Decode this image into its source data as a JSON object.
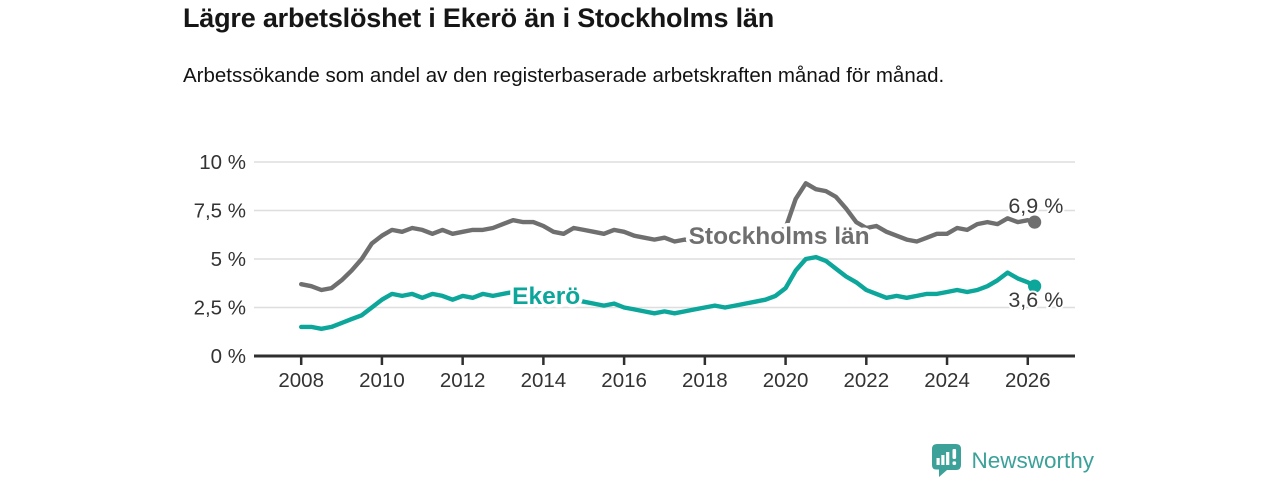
{
  "header": {
    "title": "Lägre arbetslöshet i Ekerö än i Stockholms län",
    "subtitle": "Arbetssökande som andel av den registerbaserade arbetskraften månad för månad."
  },
  "logo": {
    "text": "Newsworthy",
    "icon": "newsworthy-bar-chart-bubble-icon",
    "color": "#3ba199"
  },
  "colors": {
    "ekero": "#0ca69a",
    "stockholm": "#6f6f6f",
    "grid": "#dedede",
    "axis": "#2f2f2f",
    "tick_text": "#333333",
    "end_label_text": "#3a3a3a",
    "background": "#ffffff"
  },
  "chart_data": {
    "type": "line",
    "title": "Lägre arbetslöshet i Ekerö än i Stockholms län",
    "xlabel": "",
    "ylabel": "",
    "unit": "%",
    "grid": true,
    "legend": "inline-labels",
    "x_axis": {
      "range": [
        2006.93,
        2027.17
      ],
      "ticks": [
        2008,
        2010,
        2012,
        2014,
        2016,
        2018,
        2020,
        2022,
        2024,
        2026
      ]
    },
    "y_axis": {
      "range": [
        0,
        10
      ],
      "ticks": [
        {
          "v": 0,
          "label": "0 %"
        },
        {
          "v": 2.5,
          "label": "2,5 %"
        },
        {
          "v": 5,
          "label": "5 %"
        },
        {
          "v": 7.5,
          "label": "7,5 %"
        },
        {
          "v": 10,
          "label": "10 %"
        }
      ]
    },
    "series": [
      {
        "name": "Stockholms län",
        "color": "#6f6f6f",
        "end_value": 6.9,
        "end_label": "6,9 %",
        "points": [
          [
            2008,
            3.7
          ],
          [
            2008.25,
            3.6
          ],
          [
            2008.5,
            3.4
          ],
          [
            2008.75,
            3.5
          ],
          [
            2009,
            3.9
          ],
          [
            2009.25,
            4.4
          ],
          [
            2009.5,
            5.0
          ],
          [
            2009.75,
            5.8
          ],
          [
            2010,
            6.2
          ],
          [
            2010.25,
            6.5
          ],
          [
            2010.5,
            6.4
          ],
          [
            2010.75,
            6.6
          ],
          [
            2011,
            6.5
          ],
          [
            2011.25,
            6.3
          ],
          [
            2011.5,
            6.5
          ],
          [
            2011.75,
            6.3
          ],
          [
            2012,
            6.4
          ],
          [
            2012.25,
            6.5
          ],
          [
            2012.5,
            6.5
          ],
          [
            2012.75,
            6.6
          ],
          [
            2013,
            6.8
          ],
          [
            2013.25,
            7.0
          ],
          [
            2013.5,
            6.9
          ],
          [
            2013.75,
            6.9
          ],
          [
            2014,
            6.7
          ],
          [
            2014.25,
            6.4
          ],
          [
            2014.5,
            6.3
          ],
          [
            2014.75,
            6.6
          ],
          [
            2015,
            6.5
          ],
          [
            2015.25,
            6.4
          ],
          [
            2015.5,
            6.3
          ],
          [
            2015.75,
            6.5
          ],
          [
            2016,
            6.4
          ],
          [
            2016.25,
            6.2
          ],
          [
            2016.5,
            6.1
          ],
          [
            2016.75,
            6.0
          ],
          [
            2017,
            6.1
          ],
          [
            2017.25,
            5.9
          ],
          [
            2017.5,
            6.0
          ],
          [
            2017.75,
            5.9
          ],
          [
            2018,
            6.0
          ],
          [
            2018.25,
            6.1
          ],
          [
            2018.5,
            6.0
          ],
          [
            2018.75,
            6.0
          ],
          [
            2019,
            6.0
          ],
          [
            2019.25,
            6.1
          ],
          [
            2019.5,
            6.1
          ],
          [
            2019.75,
            6.3
          ],
          [
            2020,
            6.6
          ],
          [
            2020.25,
            8.1
          ],
          [
            2020.5,
            8.9
          ],
          [
            2020.75,
            8.6
          ],
          [
            2021,
            8.5
          ],
          [
            2021.25,
            8.2
          ],
          [
            2021.5,
            7.6
          ],
          [
            2021.75,
            6.9
          ],
          [
            2022,
            6.6
          ],
          [
            2022.25,
            6.7
          ],
          [
            2022.5,
            6.4
          ],
          [
            2022.75,
            6.2
          ],
          [
            2023,
            6.0
          ],
          [
            2023.25,
            5.9
          ],
          [
            2023.5,
            6.1
          ],
          [
            2023.75,
            6.3
          ],
          [
            2024,
            6.3
          ],
          [
            2024.25,
            6.6
          ],
          [
            2024.5,
            6.5
          ],
          [
            2024.75,
            6.8
          ],
          [
            2025,
            6.9
          ],
          [
            2025.25,
            6.8
          ],
          [
            2025.5,
            7.1
          ],
          [
            2025.75,
            6.9
          ],
          [
            2026,
            7.0
          ],
          [
            2026.17,
            6.9
          ]
        ]
      },
      {
        "name": "Ekerö",
        "color": "#0ca69a",
        "end_value": 3.6,
        "end_label": "3,6 %",
        "points": [
          [
            2008,
            1.5
          ],
          [
            2008.25,
            1.5
          ],
          [
            2008.5,
            1.4
          ],
          [
            2008.75,
            1.5
          ],
          [
            2009,
            1.7
          ],
          [
            2009.25,
            1.9
          ],
          [
            2009.5,
            2.1
          ],
          [
            2009.75,
            2.5
          ],
          [
            2010,
            2.9
          ],
          [
            2010.25,
            3.2
          ],
          [
            2010.5,
            3.1
          ],
          [
            2010.75,
            3.2
          ],
          [
            2011,
            3.0
          ],
          [
            2011.25,
            3.2
          ],
          [
            2011.5,
            3.1
          ],
          [
            2011.75,
            2.9
          ],
          [
            2012,
            3.1
          ],
          [
            2012.25,
            3.0
          ],
          [
            2012.5,
            3.2
          ],
          [
            2012.75,
            3.1
          ],
          [
            2013,
            3.2
          ],
          [
            2013.25,
            3.3
          ],
          [
            2013.5,
            3.2
          ],
          [
            2013.75,
            3.3
          ],
          [
            2014,
            3.2
          ],
          [
            2014.25,
            3.1
          ],
          [
            2014.5,
            3.0
          ],
          [
            2014.75,
            2.9
          ],
          [
            2015,
            2.8
          ],
          [
            2015.25,
            2.7
          ],
          [
            2015.5,
            2.6
          ],
          [
            2015.75,
            2.7
          ],
          [
            2016,
            2.5
          ],
          [
            2016.25,
            2.4
          ],
          [
            2016.5,
            2.3
          ],
          [
            2016.75,
            2.2
          ],
          [
            2017,
            2.3
          ],
          [
            2017.25,
            2.2
          ],
          [
            2017.5,
            2.3
          ],
          [
            2017.75,
            2.4
          ],
          [
            2018,
            2.5
          ],
          [
            2018.25,
            2.6
          ],
          [
            2018.5,
            2.5
          ],
          [
            2018.75,
            2.6
          ],
          [
            2019,
            2.7
          ],
          [
            2019.25,
            2.8
          ],
          [
            2019.5,
            2.9
          ],
          [
            2019.75,
            3.1
          ],
          [
            2020,
            3.5
          ],
          [
            2020.25,
            4.4
          ],
          [
            2020.5,
            5.0
          ],
          [
            2020.75,
            5.1
          ],
          [
            2021,
            4.9
          ],
          [
            2021.25,
            4.5
          ],
          [
            2021.5,
            4.1
          ],
          [
            2021.75,
            3.8
          ],
          [
            2022,
            3.4
          ],
          [
            2022.25,
            3.2
          ],
          [
            2022.5,
            3.0
          ],
          [
            2022.75,
            3.1
          ],
          [
            2023,
            3.0
          ],
          [
            2023.25,
            3.1
          ],
          [
            2023.5,
            3.2
          ],
          [
            2023.75,
            3.2
          ],
          [
            2024,
            3.3
          ],
          [
            2024.25,
            3.4
          ],
          [
            2024.5,
            3.3
          ],
          [
            2024.75,
            3.4
          ],
          [
            2025,
            3.6
          ],
          [
            2025.25,
            3.9
          ],
          [
            2025.5,
            4.3
          ],
          [
            2025.75,
            4.0
          ],
          [
            2026,
            3.8
          ],
          [
            2026.17,
            3.6
          ]
        ]
      }
    ],
    "annotations": [
      {
        "text": "Stockholms län",
        "x": 2019.84,
        "y": 6.24,
        "color": "#6f6f6f",
        "role": "series-label",
        "series": "Stockholms län"
      },
      {
        "text": "Ekerö",
        "x": 2014.07,
        "y": 3.14,
        "color": "#0ca69a",
        "role": "series-label",
        "series": "Ekerö"
      },
      {
        "text": "6,9 %",
        "x": 2026.2,
        "y": 7.73,
        "color": "#3a3a3a",
        "role": "end-value-label",
        "series": "Stockholms län"
      },
      {
        "text": "3,6 %",
        "x": 2026.2,
        "y": 2.89,
        "color": "#3a3a3a",
        "role": "end-value-label",
        "series": "Ekerö"
      }
    ]
  }
}
